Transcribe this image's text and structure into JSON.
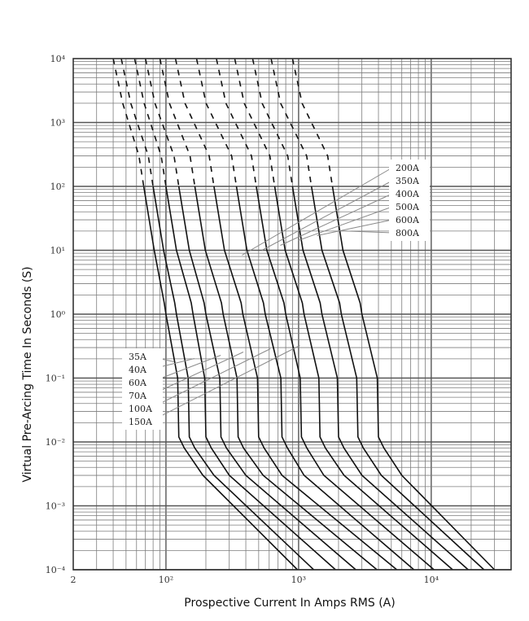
{
  "chart_data": {
    "type": "line",
    "xlabel": "Prospective Current In Amps RMS (A)",
    "ylabel": "Virtual Pre-Arcing Time In Seconds (S)",
    "x_scale": "log",
    "y_scale": "log",
    "xlim": [
      20,
      40000
    ],
    "ylim": [
      0.0001,
      10000
    ],
    "grid": true,
    "x_tick_labels": [
      {
        "value": 20,
        "label": "2"
      },
      {
        "value": 100,
        "label": "10²"
      },
      {
        "value": 1000,
        "label": "10³"
      },
      {
        "value": 10000,
        "label": "10⁴"
      }
    ],
    "y_tick_labels": [
      {
        "value": 10000,
        "label": "10⁴"
      },
      {
        "value": 1000,
        "label": "10³"
      },
      {
        "value": 100,
        "label": "10²"
      },
      {
        "value": 10,
        "label": "10¹"
      },
      {
        "value": 1,
        "label": "10⁰"
      },
      {
        "value": 0.1,
        "label": "10⁻¹"
      },
      {
        "value": 0.01,
        "label": "10⁻²"
      },
      {
        "value": 0.001,
        "label": "10⁻³"
      },
      {
        "value": 0.0001,
        "label": "10⁻⁴"
      }
    ],
    "legend_left": [
      "35A",
      "40A",
      "60A",
      "70A",
      "100A",
      "150A"
    ],
    "legend_right": [
      "200A",
      "350A",
      "400A",
      "500A",
      "600A",
      "800A"
    ],
    "series": [
      {
        "name": "35A",
        "top_x": 40,
        "x_100s": 68,
        "x_1s": 100,
        "x_10ms": 125,
        "x_3ms": 190,
        "x_end": 980
      },
      {
        "name": "40A",
        "top_x": 46,
        "x_100s": 80,
        "x_1s": 120,
        "x_10ms": 150,
        "x_3ms": 230,
        "x_end": 1300
      },
      {
        "name": "60A",
        "top_x": 58,
        "x_100s": 100,
        "x_1s": 160,
        "x_10ms": 200,
        "x_3ms": 300,
        "x_end": 1900
      },
      {
        "name": "70A",
        "top_x": 70,
        "x_100s": 125,
        "x_1s": 200,
        "x_10ms": 260,
        "x_3ms": 400,
        "x_end": 2700
      },
      {
        "name": "100A",
        "top_x": 90,
        "x_100s": 165,
        "x_1s": 270,
        "x_10ms": 350,
        "x_3ms": 540,
        "x_end": 3900
      },
      {
        "name": "150A",
        "top_x": 118,
        "x_100s": 230,
        "x_1s": 380,
        "x_10ms": 500,
        "x_3ms": 750,
        "x_end": 5500
      },
      {
        "name": "200A",
        "top_x": 170,
        "x_100s": 340,
        "x_1s": 560,
        "x_10ms": 750,
        "x_3ms": 1100,
        "x_end": 7400
      },
      {
        "name": "350A",
        "top_x": 240,
        "x_100s": 480,
        "x_1s": 800,
        "x_10ms": 1050,
        "x_3ms": 1550,
        "x_end": 10500
      },
      {
        "name": "400A",
        "top_x": 330,
        "x_100s": 660,
        "x_1s": 1100,
        "x_10ms": 1450,
        "x_3ms": 2200,
        "x_end": 14500
      },
      {
        "name": "500A",
        "top_x": 450,
        "x_100s": 900,
        "x_1s": 1500,
        "x_10ms": 2000,
        "x_3ms": 3000,
        "x_end": 19000
      },
      {
        "name": "600A",
        "top_x": 620,
        "x_100s": 1250,
        "x_1s": 2100,
        "x_10ms": 2800,
        "x_3ms": 4200,
        "x_end": 25000
      },
      {
        "name": "800A",
        "top_x": 900,
        "x_100s": 1800,
        "x_1s": 3000,
        "x_10ms": 4000,
        "x_3ms": 6000,
        "x_end": 30000
      }
    ]
  }
}
